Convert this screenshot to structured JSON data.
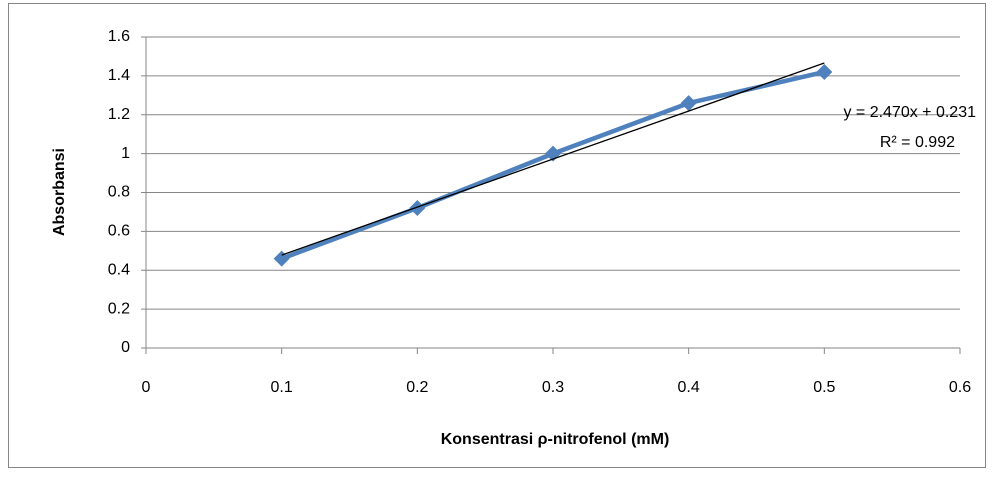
{
  "chart_data": {
    "type": "line",
    "x_label": "Konsentrasi ρ-nitrofenol (mM)",
    "y_label": "Absorbansi",
    "x": [
      0.1,
      0.2,
      0.3,
      0.4,
      0.5
    ],
    "series": [
      {
        "name": "Absorbansi",
        "color": "#4f81bd",
        "values": [
          0.46,
          0.72,
          1.0,
          1.26,
          1.42
        ]
      }
    ],
    "trendline": {
      "slope": 2.47,
      "intercept": 0.231,
      "equation": "y = 2.470x + 0.231",
      "r2_label": "R² = 0.992",
      "color": "#000000"
    },
    "xlim": [
      0,
      0.6
    ],
    "xticks": [
      0,
      0.1,
      0.2,
      0.3,
      0.4,
      0.5,
      0.6
    ],
    "ylim": [
      0,
      1.6
    ],
    "yticks": [
      0,
      0.2,
      0.4,
      0.6,
      0.8,
      1,
      1.2,
      1.4,
      1.6
    ],
    "grid": true
  }
}
